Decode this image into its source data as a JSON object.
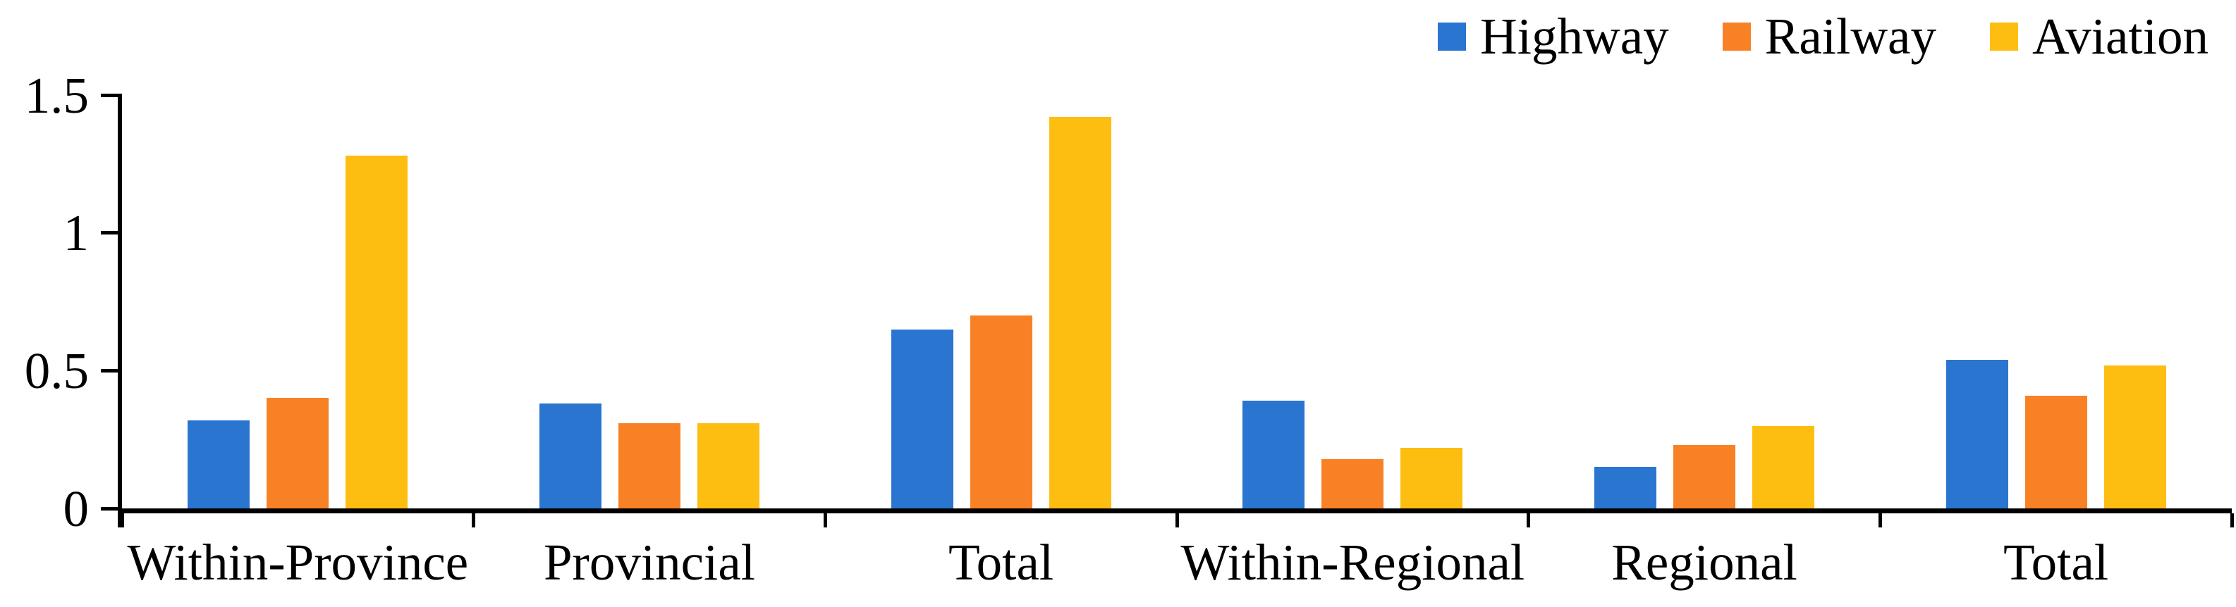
{
  "chart_data": {
    "type": "bar",
    "title": "",
    "xlabel": "",
    "ylabel": "",
    "categories": [
      "Within-Province",
      "Provincial",
      "Total",
      "Within-Regional",
      "Regional",
      "Total"
    ],
    "series": [
      {
        "name": "Highway",
        "color": "#2A75D0",
        "values": [
          0.32,
          0.38,
          0.65,
          0.39,
          0.15,
          0.54
        ]
      },
      {
        "name": "Railway",
        "color": "#F98125",
        "values": [
          0.4,
          0.31,
          0.7,
          0.18,
          0.23,
          0.41
        ]
      },
      {
        "name": "Aviation",
        "color": "#FEBD11",
        "values": [
          1.28,
          0.31,
          1.42,
          0.22,
          0.3,
          0.52
        ]
      }
    ],
    "ylim": [
      0,
      1.5
    ],
    "yticks": [
      0,
      0.5,
      1,
      1.5
    ],
    "ytick_labels": [
      "0",
      "0.5",
      "1",
      "1.5"
    ],
    "grid": false,
    "legend_position": "top-right",
    "axis_color": "#000000",
    "background": "#FFFFFF"
  }
}
